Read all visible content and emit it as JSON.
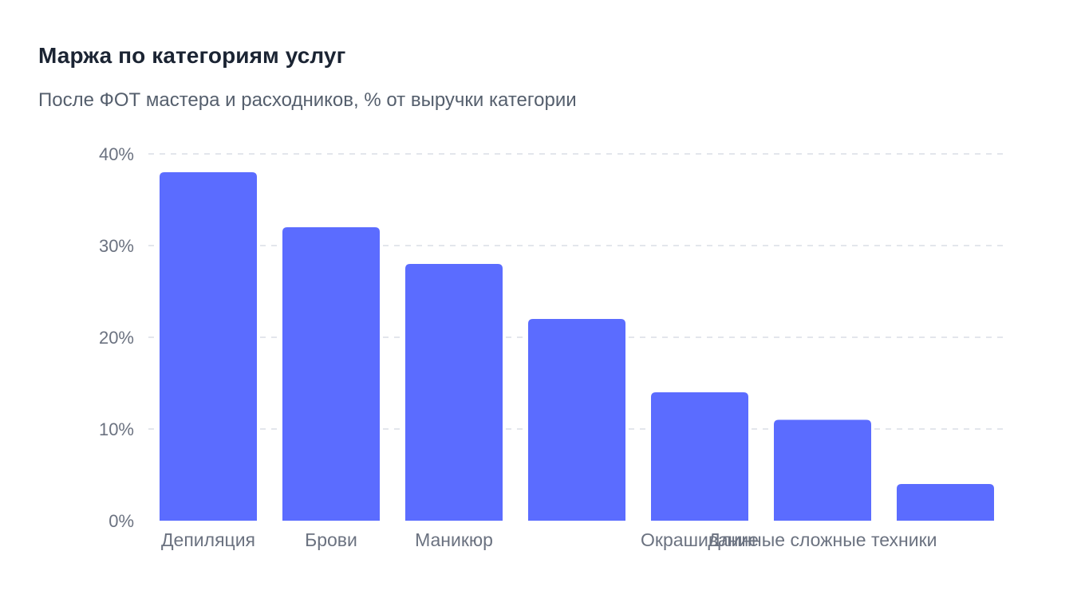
{
  "header": {
    "title": "Маржа по категориям услуг",
    "subtitle": "После ФОТ мастера и расходников, % от выручки категории"
  },
  "chart_data": {
    "type": "bar",
    "categories": [
      "Депиляция",
      "Брови",
      "Маникюр",
      "",
      "Окрашивание",
      "Длинные сложные техники",
      ""
    ],
    "values": [
      38,
      32,
      28,
      22,
      14,
      11,
      4
    ],
    "unit": "%",
    "ylim": [
      0,
      40
    ],
    "yticks": [
      0,
      10,
      20,
      30,
      40
    ],
    "ytick_labels": [
      "0%",
      "10%",
      "20%",
      "30%",
      "40%"
    ],
    "grid": true,
    "bar_color": "#5b6cff",
    "grid_color": "#e3e6ec",
    "xlabel": "",
    "ylabel": ""
  }
}
